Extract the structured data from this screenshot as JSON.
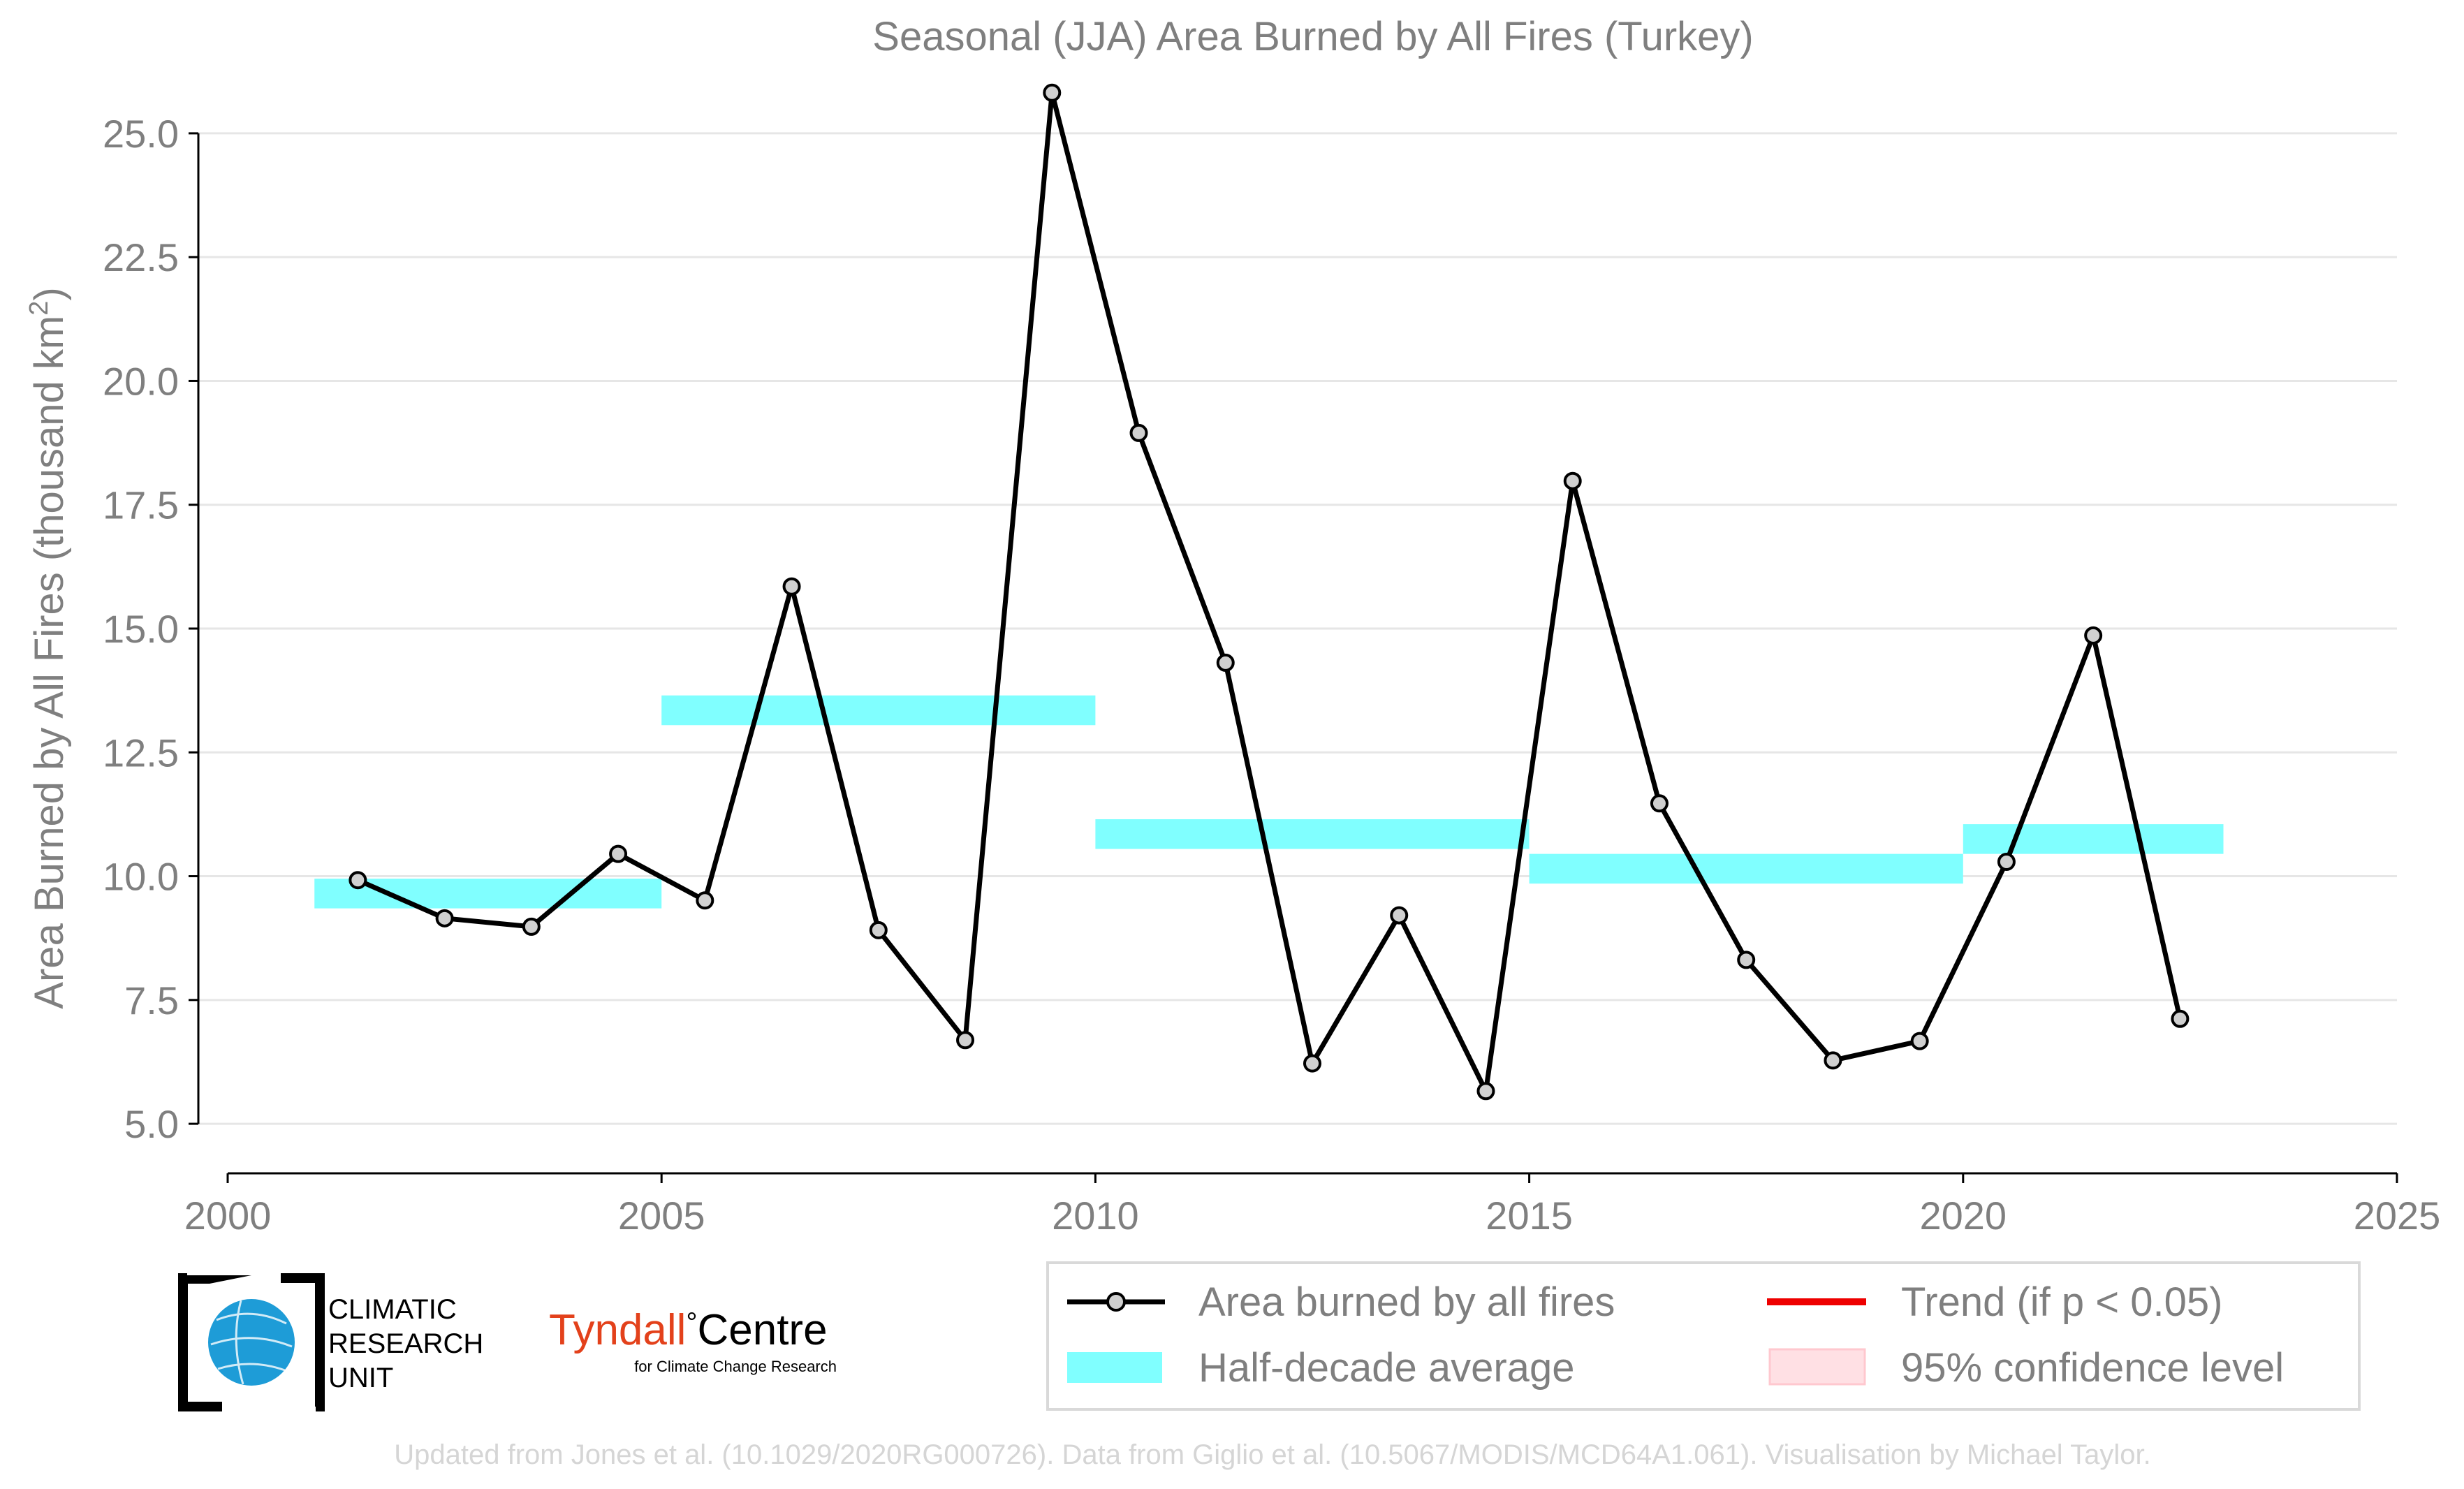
{
  "chart_data": {
    "type": "line",
    "title": "Seasonal (JJA) Area Burned by All Fires (Turkey)",
    "xlabel": "",
    "ylabel": "Area Burned by All Fires (thousand km",
    "ylabel_sup": "2",
    "ylabel_end": ")",
    "xlim": [
      2000,
      2025
    ],
    "ylim": [
      4.0,
      26.0
    ],
    "xticks": [
      2000,
      2005,
      2010,
      2015,
      2020,
      2025
    ],
    "xtick_labels": [
      "2000",
      "2005",
      "2010",
      "2015",
      "2020",
      "2025"
    ],
    "yticks": [
      5.0,
      7.5,
      10.0,
      12.5,
      15.0,
      17.5,
      20.0,
      22.5,
      25.0
    ],
    "ytick_labels": [
      "5.0",
      "7.5",
      "10.0",
      "12.5",
      "15.0",
      "17.5",
      "20.0",
      "22.5",
      "25.0"
    ],
    "grid": true,
    "legend_position": "bottom-right",
    "series": [
      {
        "name": "Area burned by all fires",
        "x": [
          2001.5,
          2002.5,
          2003.5,
          2004.5,
          2005.5,
          2006.5,
          2007.5,
          2008.5,
          2009.5,
          2010.5,
          2011.5,
          2012.5,
          2013.5,
          2014.5,
          2015.5,
          2016.5,
          2017.5,
          2018.5,
          2019.5,
          2020.5,
          2021.5,
          2022.5
        ],
        "values": [
          9.92,
          9.15,
          8.98,
          10.45,
          9.51,
          15.85,
          8.91,
          6.69,
          25.82,
          18.95,
          14.31,
          6.22,
          9.21,
          5.66,
          17.98,
          11.47,
          8.31,
          6.28,
          6.67,
          10.29,
          14.86,
          7.12
        ]
      },
      {
        "name": "Half-decade average",
        "segments": [
          {
            "x_start": 2001,
            "x_end": 2005,
            "value": 9.65
          },
          {
            "x_start": 2005,
            "x_end": 2010,
            "value": 13.35
          },
          {
            "x_start": 2010,
            "x_end": 2015,
            "value": 10.85
          },
          {
            "x_start": 2015,
            "x_end": 2020,
            "value": 10.15
          },
          {
            "x_start": 2020,
            "x_end": 2023,
            "value": 10.75
          }
        ]
      }
    ],
    "legend": [
      {
        "label": "Area burned by all fires",
        "kind": "line-marker",
        "color": "#000000"
      },
      {
        "label": "Trend (if p < 0.05)",
        "kind": "line",
        "color": "#ee0000"
      },
      {
        "label": "Half-decade average",
        "kind": "band",
        "color": "#80ffff"
      },
      {
        "label": "95% confidence level",
        "kind": "patch",
        "color": "#ffe0e4"
      }
    ],
    "colors": {
      "line": "#000000",
      "marker_fill": "#d0d0d0",
      "band": "#80ffff",
      "trend": "#ee0000",
      "ci": "#ffe0e4",
      "grid": "#e6e6e6",
      "text": "#7f7f7f"
    }
  },
  "logos": {
    "cru_line1": "CLIMATIC",
    "cru_line2": "RESEARCH",
    "cru_line3": "UNIT",
    "tyndall_main": "Tyndall",
    "tyndall_degree": "°",
    "tyndall_centre": "Centre",
    "tyndall_sub": "for Climate Change Research"
  },
  "footer": {
    "credit": "Updated from Jones et al. (10.1029/2020RG000726). Data from Giglio et al. (10.5067/MODIS/MCD64A1.061). Visualisation by Michael Taylor."
  }
}
